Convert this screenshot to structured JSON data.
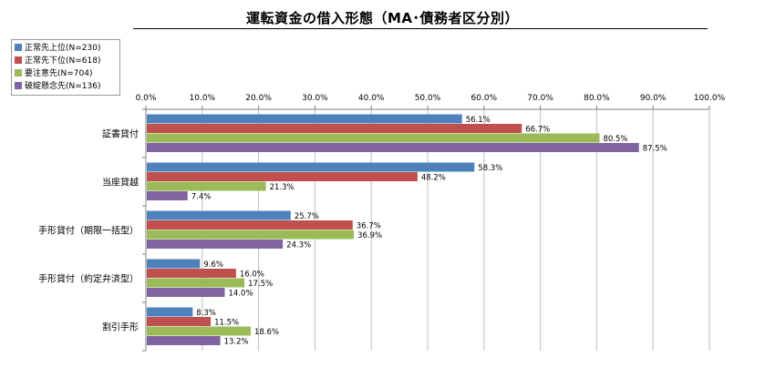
{
  "chart_data": {
    "type": "bar",
    "orientation": "horizontal",
    "title": "運転資金の借入形態（MA･債務者区分別）",
    "categories": [
      "証書貸付",
      "当座貸越",
      "手形貸付（期限一括型）",
      "手形貸付（約定弁済型）",
      "割引手形"
    ],
    "series": [
      {
        "name": "正常先上位(N=230)",
        "color": "#4f81bd",
        "values": [
          56.1,
          58.3,
          25.7,
          9.6,
          8.3
        ]
      },
      {
        "name": "正常先下位(N=618)",
        "color": "#c0504d",
        "values": [
          66.7,
          48.2,
          36.7,
          16.0,
          11.5
        ]
      },
      {
        "name": "要注意先(N=704)",
        "color": "#9bbb59",
        "values": [
          80.5,
          21.3,
          36.9,
          17.5,
          18.6
        ]
      },
      {
        "name": "破綻懸念先(N=136)",
        "color": "#8064a2",
        "values": [
          87.5,
          7.4,
          24.3,
          14.0,
          13.2
        ]
      }
    ],
    "xlim": [
      0,
      100
    ],
    "xticks": [
      "0.0%",
      "10.0%",
      "20.0%",
      "30.0%",
      "40.0%",
      "50.0%",
      "60.0%",
      "70.0%",
      "80.0%",
      "90.0%",
      "100.0%"
    ],
    "value_suffix": "%",
    "grid": true,
    "legend_position": "top-left"
  }
}
